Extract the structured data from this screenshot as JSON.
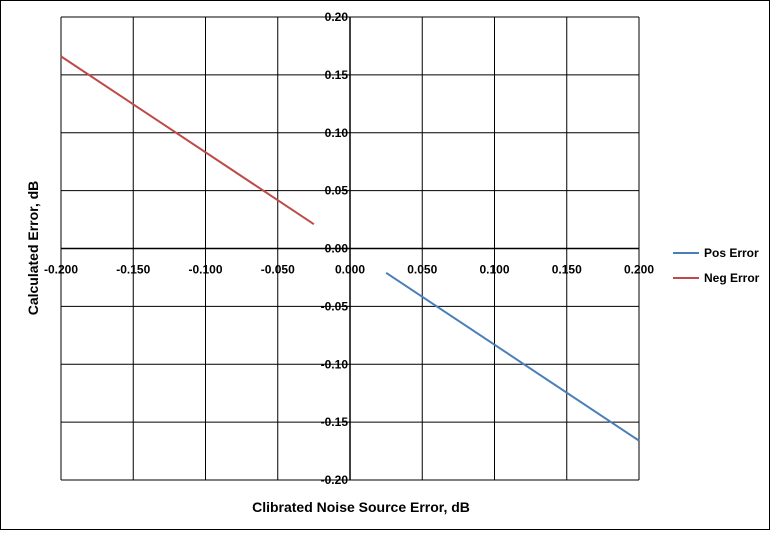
{
  "chart_data": {
    "type": "line",
    "title": "",
    "xlabel": "Clibrated Noise Source Error, dB",
    "ylabel": "Calculated Error, dB",
    "xlim": [
      -0.2,
      0.2
    ],
    "ylim": [
      -0.2,
      0.2
    ],
    "x_ticks": [
      "-0.200",
      "-0.150",
      "-0.100",
      "-0.050",
      "0.000",
      "0.050",
      "0.100",
      "0.150",
      "0.200"
    ],
    "y_ticks": [
      "0.20",
      "0.15",
      "0.10",
      "0.05",
      "0.00",
      "-0.05",
      "-0.10",
      "-0.15",
      "-0.20"
    ],
    "grid": true,
    "legend_position": "right",
    "series": [
      {
        "name": "Pos Error",
        "color": "#4a7ebb",
        "x": [
          0.025,
          0.2
        ],
        "y": [
          -0.021,
          -0.166
        ]
      },
      {
        "name": "Neg Error",
        "color": "#be4b48",
        "x": [
          -0.2,
          -0.025
        ],
        "y": [
          0.166,
          0.021
        ]
      }
    ]
  }
}
